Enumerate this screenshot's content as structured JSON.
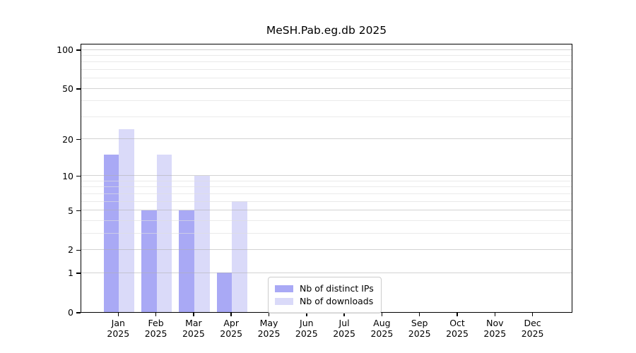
{
  "title": "MeSH.Pab.eg.db 2025",
  "colors": {
    "bar_distinct_ips": "#a9a9f5",
    "bar_downloads": "#dadaf9",
    "grid_major": "#cccccc",
    "grid_minor": "#ececec",
    "axis": "#000000",
    "legend_border": "#cccccc",
    "background": "#ffffff"
  },
  "legend": {
    "items": [
      {
        "label": "Nb of distinct IPs",
        "color_key": "bar_distinct_ips"
      },
      {
        "label": "Nb of downloads",
        "color_key": "bar_downloads"
      }
    ]
  },
  "chart_data": {
    "type": "bar",
    "title": "MeSH.Pab.eg.db 2025",
    "categories": [
      "Jan",
      "Feb",
      "Mar",
      "Apr",
      "May",
      "Jun",
      "Jul",
      "Aug",
      "Sep",
      "Oct",
      "Nov",
      "Dec"
    ],
    "year": "2025",
    "series": [
      {
        "name": "Nb of distinct IPs",
        "color_key": "bar_distinct_ips",
        "values": [
          15,
          5,
          5,
          1,
          0,
          0,
          0,
          0,
          0,
          0,
          0,
          0
        ]
      },
      {
        "name": "Nb of downloads",
        "color_key": "bar_downloads",
        "values": [
          24,
          15,
          10,
          6,
          0,
          0,
          0,
          0,
          0,
          0,
          0,
          0
        ]
      }
    ],
    "xlabel": "",
    "ylabel": "",
    "yscale": "log1p",
    "yticks": [
      0,
      1,
      2,
      5,
      10,
      20,
      50,
      100
    ],
    "yticks_minor": [
      3,
      4,
      6,
      7,
      8,
      9,
      30,
      40,
      60,
      70,
      80,
      90
    ],
    "ylim": [
      0,
      112
    ],
    "grid": true,
    "legend_position": "inside-bottom-center"
  }
}
